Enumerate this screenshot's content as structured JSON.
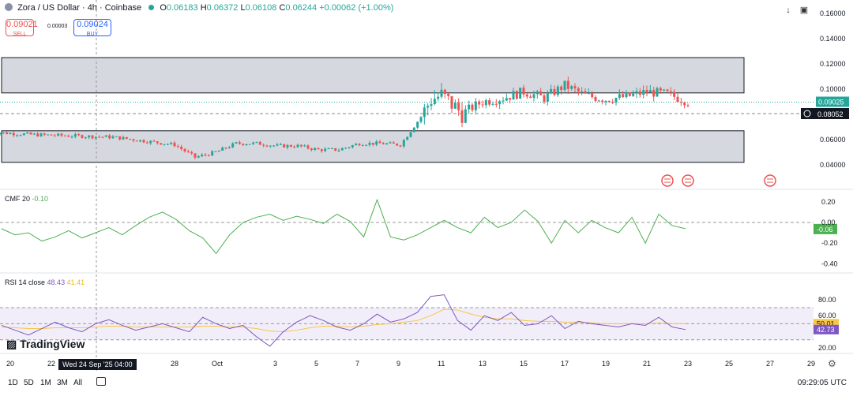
{
  "header": {
    "symbol": "Zora / US Dollar · 4h · Coinbase",
    "o_label": "O",
    "o_value": "0.06183",
    "h_label": "H",
    "h_value": "0.06372",
    "l_label": "L",
    "l_value": "0.06108",
    "c_label": "C",
    "c_value": "0.06244",
    "change": "+0.00062 (+1.00%)"
  },
  "trade": {
    "sell_price": "0.09021",
    "sell_label": "SELL",
    "spread": "0.00003",
    "buy_price": "0.09024",
    "buy_label": "BUY"
  },
  "price_axis": {
    "ticks": [
      "0.16000",
      "0.14000",
      "0.12000",
      "0.10000",
      "0.06000",
      "0.04000"
    ],
    "current_price_badge": "0.09025",
    "crosshair_price_badge": "0.08052"
  },
  "cmf": {
    "label": "CMF 20",
    "value": "-0.10",
    "badge": "-0.06",
    "ticks": [
      "0.20",
      "0.00",
      "-0.20",
      "-0.40"
    ]
  },
  "rsi": {
    "label": "RSI 14 close",
    "value1": "48.43",
    "value2": "41.41",
    "ticks": [
      "80.00",
      "60.00",
      "20.00"
    ],
    "badge_ma": "50.01",
    "badge_rsi": "42.73"
  },
  "time_axis": {
    "labels": [
      "20",
      "22",
      "28",
      "Oct",
      "3",
      "5",
      "7",
      "9",
      "11",
      "13",
      "15",
      "17",
      "19",
      "21",
      "23",
      "25",
      "27",
      "29"
    ],
    "crosshair_label": "Wed 24 Sep '25   04:00"
  },
  "bottom": {
    "timeframes": [
      "1D",
      "5D",
      "1M",
      "3M",
      "All"
    ],
    "clock": "09:29:05 UTC",
    "logo": "TradingView"
  },
  "colors": {
    "up": "#26a69a",
    "down": "#ef5350",
    "cmf_line": "#4caf50",
    "rsi_line": "#7e57c2",
    "rsi_ma": "#f7c548",
    "zone": "#d1d4dc"
  },
  "chart_data": [
    {
      "type": "candlestick",
      "title": "Zora / US Dollar · 4h · Coinbase",
      "x_range": [
        "Sep 19",
        "Oct 29"
      ],
      "ylim": [
        0.03,
        0.165
      ],
      "y_ticks": [
        0.16,
        0.14,
        0.12,
        0.1,
        0.06,
        0.04
      ],
      "zones": [
        {
          "from": 0.097,
          "to": 0.125
        },
        {
          "from": 0.042,
          "to": 0.067
        }
      ],
      "close_path": [
        [
          "Sep 19",
          0.066
        ],
        [
          "Sep 21",
          0.064
        ],
        [
          "Sep 23",
          0.063
        ],
        [
          "Sep 25",
          0.062
        ],
        [
          "Sep 27",
          0.058
        ],
        [
          "Sep 28",
          0.056
        ],
        [
          "Sep 29",
          0.046
        ],
        [
          "Sep 30",
          0.05
        ],
        [
          "Oct 1",
          0.057
        ],
        [
          "Oct 2",
          0.057
        ],
        [
          "Oct 3",
          0.055
        ],
        [
          "Oct 4",
          0.055
        ],
        [
          "Oct 5",
          0.052
        ],
        [
          "Oct 6",
          0.052
        ],
        [
          "Oct 7",
          0.057
        ],
        [
          "Oct 8",
          0.057
        ],
        [
          "Oct 9",
          0.056
        ],
        [
          "Oct 10",
          0.078
        ],
        [
          "Oct 10 12:00",
          0.092
        ],
        [
          "Oct 11",
          0.095
        ],
        [
          "Oct 12",
          0.081
        ],
        [
          "Oct 13",
          0.09
        ],
        [
          "Oct 14",
          0.093
        ],
        [
          "Oct 15",
          0.098
        ],
        [
          "Oct 16",
          0.093
        ],
        [
          "Oct 17",
          0.103
        ],
        [
          "Oct 18",
          0.095
        ],
        [
          "Oct 19",
          0.092
        ],
        [
          "Oct 20",
          0.094
        ],
        [
          "Oct 21",
          0.098
        ],
        [
          "Oct 22",
          0.096
        ],
        [
          "Oct 23",
          0.0903
        ]
      ],
      "events": [
        "Oct 22",
        "Oct 23",
        "Oct 27"
      ]
    },
    {
      "type": "line",
      "title": "CMF 20",
      "ylim": [
        -0.45,
        0.25
      ],
      "y_ticks": [
        0.2,
        0.0,
        -0.2,
        -0.4
      ],
      "series": [
        {
          "name": "CMF 20",
          "values": [
            -0.06,
            -0.12,
            -0.1,
            -0.18,
            -0.14,
            -0.08,
            -0.15,
            -0.1,
            -0.05,
            -0.12,
            -0.03,
            0.05,
            0.1,
            0.03,
            -0.08,
            -0.15,
            -0.3,
            -0.12,
            0.0,
            0.05,
            0.08,
            0.02,
            0.06,
            0.03,
            -0.01,
            0.08,
            0.01,
            -0.14,
            0.22,
            -0.14,
            -0.17,
            -0.12,
            -0.05,
            0.02,
            -0.05,
            -0.1,
            0.05,
            -0.05,
            0.0,
            0.12,
            0.01,
            -0.2,
            0.02,
            -0.1,
            0.02,
            -0.05,
            -0.1,
            0.05,
            -0.2,
            0.08,
            -0.03,
            -0.06
          ]
        }
      ]
    },
    {
      "type": "line",
      "title": "RSI 14 close",
      "ylim": [
        18,
        88
      ],
      "y_ticks": [
        80,
        60,
        20
      ],
      "band": [
        30,
        70
      ],
      "series": [
        {
          "name": "RSI 14 close",
          "values": [
            48,
            42,
            36,
            44,
            52,
            45,
            40,
            50,
            55,
            48,
            42,
            46,
            50,
            45,
            40,
            58,
            50,
            44,
            48,
            34,
            22,
            40,
            52,
            60,
            54,
            46,
            42,
            50,
            62,
            52,
            56,
            64,
            84,
            86,
            54,
            42,
            60,
            54,
            64,
            48,
            50,
            60,
            44,
            53,
            50,
            48,
            46,
            50,
            48,
            58,
            46,
            42.73
          ]
        },
        {
          "name": "MA",
          "values": [
            46,
            45,
            44,
            44,
            45,
            45,
            45,
            46,
            47,
            47,
            46,
            46,
            46,
            46,
            46,
            47,
            47,
            46,
            46,
            44,
            41,
            40,
            42,
            45,
            47,
            47,
            46,
            47,
            49,
            50,
            52,
            54,
            60,
            68,
            67,
            62,
            58,
            56,
            56,
            54,
            53,
            53,
            52,
            52,
            51,
            50,
            50,
            50,
            50,
            51,
            50,
            50.01
          ]
        }
      ]
    }
  ]
}
